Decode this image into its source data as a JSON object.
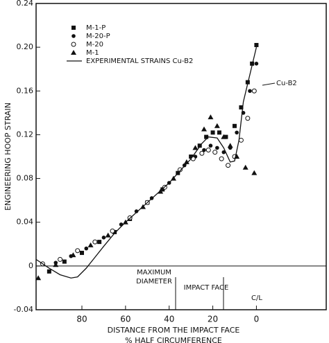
{
  "chart_data": {
    "type": "scatter",
    "ylabel": "ENGINEERING HOOP STRAIN",
    "xlabel": "DISTANCE FROM THE IMPACT FACE",
    "xlabel_line2": "% HALF CIRCUMFERENCE",
    "annotations": [
      "MAXIMUM",
      "DIAMETER",
      "IMPACT FACE",
      "C/L",
      "Cu-B2"
    ],
    "xlim": [
      101,
      -32
    ],
    "xticks": [
      80,
      60,
      40,
      20,
      0
    ],
    "ylim": [
      -0.04,
      0.24
    ],
    "yticks": [
      {
        "value": -0.04,
        "label": "-0.04"
      },
      0,
      0.04,
      0.08,
      0.12,
      0.16,
      {
        "value": 0.2,
        "label": "0.20"
      },
      0.24
    ],
    "legend": "upper left",
    "series": [
      {
        "name": "M-1-P",
        "color": "#111111",
        "marker": "square",
        "x": [
          95,
          88,
          80,
          72,
          65,
          58,
          50,
          43,
          36,
          30,
          26,
          23,
          20,
          17,
          14,
          10,
          7,
          4,
          2,
          0
        ],
        "values": [
          -0.005,
          0.004,
          0.012,
          0.022,
          0.031,
          0.043,
          0.058,
          0.07,
          0.085,
          0.1,
          0.11,
          0.118,
          0.122,
          0.122,
          0.118,
          0.128,
          0.145,
          0.168,
          0.185,
          0.202
        ]
      },
      {
        "name": "M-20-P",
        "color": "#111111",
        "marker": "dot",
        "x": [
          92,
          85,
          78,
          70,
          62,
          55,
          48,
          40,
          33,
          28,
          24,
          21,
          18,
          15,
          12,
          9,
          6,
          3,
          0
        ],
        "values": [
          0.003,
          0.009,
          0.016,
          0.026,
          0.038,
          0.05,
          0.062,
          0.076,
          0.092,
          0.1,
          0.106,
          0.11,
          0.108,
          0.104,
          0.108,
          0.122,
          0.14,
          0.16,
          0.185
        ]
      },
      {
        "name": "M-20",
        "color": "#111111",
        "marker": "circle",
        "x": [
          98,
          90,
          82,
          74,
          66,
          58,
          50,
          42,
          35,
          29,
          25,
          22,
          19,
          16,
          13,
          10,
          7,
          4,
          1
        ],
        "values": [
          0.002,
          0.006,
          0.014,
          0.022,
          0.032,
          0.044,
          0.058,
          0.072,
          0.088,
          0.098,
          0.103,
          0.106,
          0.104,
          0.098,
          0.092,
          0.1,
          0.115,
          0.135,
          0.16
        ]
      },
      {
        "name": "M-1",
        "color": "#111111",
        "marker": "triangle",
        "x": [
          100,
          92,
          84,
          76,
          68,
          60,
          52,
          44,
          38,
          32,
          28,
          24,
          21,
          18,
          15,
          12,
          9,
          5,
          1
        ],
        "values": [
          -0.011,
          0.001,
          0.01,
          0.019,
          0.028,
          0.04,
          0.054,
          0.068,
          0.08,
          0.095,
          0.108,
          0.125,
          0.136,
          0.128,
          0.118,
          0.11,
          0.1,
          0.09,
          0.085
        ]
      },
      {
        "name": "EXPERIMENTAL STRAINS Cu-B2",
        "color": "#111111",
        "marker": "line",
        "x": [
          101,
          95,
          90,
          85,
          82,
          78,
          74,
          70,
          65,
          60,
          50,
          40,
          30,
          25,
          22,
          18,
          15,
          12,
          10,
          8,
          6,
          3,
          0
        ],
        "values": [
          0.006,
          -0.002,
          -0.008,
          -0.011,
          -0.01,
          -0.002,
          0.008,
          0.018,
          0.03,
          0.04,
          0.058,
          0.076,
          0.098,
          0.112,
          0.118,
          0.117,
          0.108,
          0.095,
          0.096,
          0.115,
          0.15,
          0.175,
          0.2
        ]
      }
    ]
  }
}
